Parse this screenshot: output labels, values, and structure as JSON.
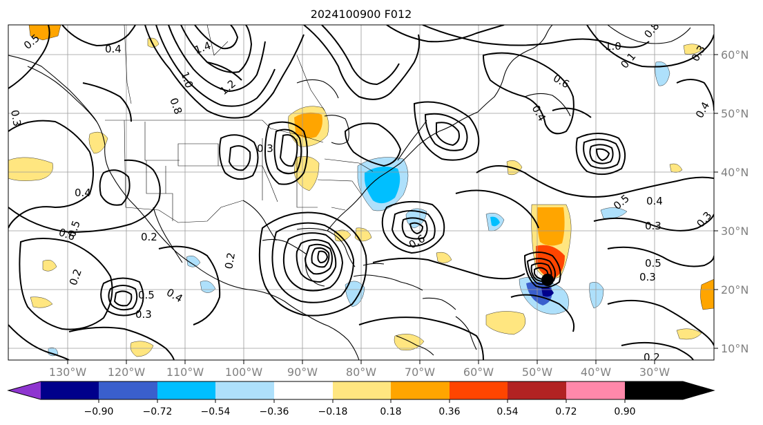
{
  "title": "2024100900 F012",
  "lat_labels": [
    "60°N",
    "50°N",
    "40°N",
    "30°N",
    "20°N",
    "10°N"
  ],
  "lon_labels": [
    "130°W",
    "120°W",
    "110°W",
    "100°W",
    "90°W",
    "80°W",
    "70°W",
    "60°W",
    "50°W",
    "40°W",
    "30°W"
  ],
  "colorbar": {
    "ticks": [
      "−0.90",
      "−0.72",
      "−0.54",
      "−0.36",
      "−0.18",
      "0.18",
      "0.36",
      "0.54",
      "0.72",
      "0.90"
    ],
    "colors": [
      "#8e35d0",
      "#00008b",
      "#3a5fcd",
      "#00bfff",
      "#aee0fb",
      "#ffffff",
      "#ffe680",
      "#ffa500",
      "#ff4500",
      "#b22222",
      "#ff88aa"
    ]
  },
  "contour_labels": [
    "0.5",
    "0.4",
    "1.4",
    "1.0",
    "0.8",
    "1.2",
    "0.3",
    "0.4",
    "0.6",
    "0.2",
    "0.5",
    "0.4",
    "0.2",
    "0.5",
    "0.3",
    "0.6",
    "0.2",
    "0.3",
    "1.0",
    "0.8",
    "0.1",
    "0.6",
    "0.4",
    "0.3",
    "0.5",
    "0.4",
    "0.3",
    "0.5",
    "0.3",
    "0.2",
    "0.3",
    "0.4"
  ]
}
